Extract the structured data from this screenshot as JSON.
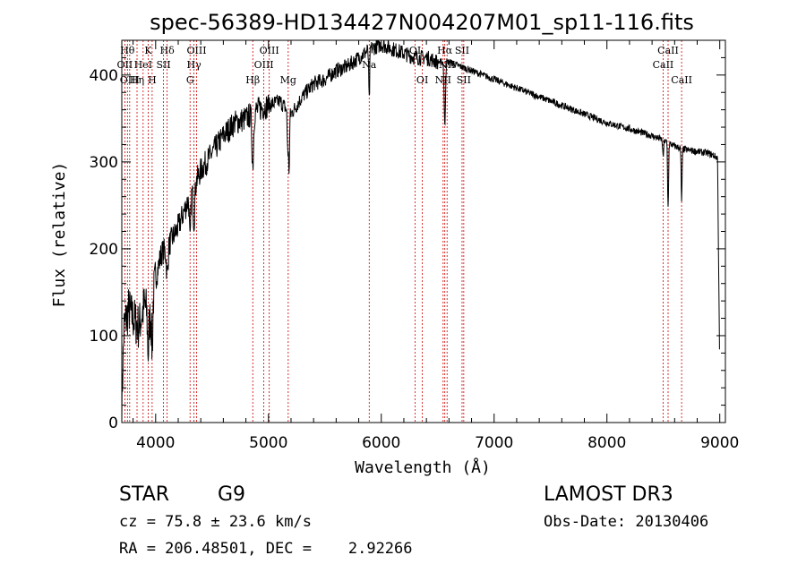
{
  "chart_data": {
    "type": "line",
    "title": "spec-56389-HD134427N004207M01_sp11-116.fits",
    "xlabel": "Wavelength (Å)",
    "ylabel": "Flux (relative)",
    "xlim": [
      3700,
      9050
    ],
    "ylim": [
      0,
      440
    ],
    "xticks": [
      4000,
      5000,
      6000,
      7000,
      8000,
      9000
    ],
    "yticks": [
      0,
      100,
      200,
      300,
      400
    ],
    "continuum_anchors": {
      "x": [
        3700,
        3720,
        3760,
        3800,
        3850,
        3900,
        3950,
        4000,
        4050,
        4100,
        4200,
        4300,
        4400,
        4500,
        4600,
        4700,
        4800,
        4900,
        5000,
        5100,
        5200,
        5300,
        5400,
        5500,
        5600,
        5700,
        5800,
        5900,
        6000,
        6100,
        6200,
        6300,
        6400,
        6500,
        6600,
        6700,
        6800,
        6900,
        7000,
        7200,
        7400,
        7600,
        7800,
        8000,
        8200,
        8400,
        8500,
        8600,
        8700,
        8800,
        8900,
        8980,
        9000
      ],
      "y": [
        20,
        110,
        130,
        120,
        110,
        135,
        120,
        165,
        195,
        200,
        225,
        260,
        290,
        310,
        330,
        345,
        350,
        360,
        365,
        370,
        355,
        375,
        390,
        395,
        405,
        410,
        420,
        430,
        435,
        430,
        425,
        420,
        420,
        415,
        415,
        410,
        405,
        400,
        395,
        385,
        375,
        365,
        355,
        345,
        338,
        330,
        325,
        318,
        314,
        312,
        310,
        305,
        60
      ]
    },
    "absorption_features": [
      {
        "x": 3934,
        "depth": 45,
        "width": 8
      },
      {
        "x": 3969,
        "depth": 50,
        "width": 8
      },
      {
        "x": 4102,
        "depth": 30,
        "width": 10
      },
      {
        "x": 4305,
        "depth": 55,
        "width": 8
      },
      {
        "x": 4340,
        "depth": 40,
        "width": 10
      },
      {
        "x": 4861,
        "depth": 60,
        "width": 10
      },
      {
        "x": 5172,
        "depth": 45,
        "width": 8
      },
      {
        "x": 5183,
        "depth": 60,
        "width": 6
      },
      {
        "x": 5893,
        "depth": 60,
        "width": 6
      },
      {
        "x": 6563,
        "depth": 75,
        "width": 8
      },
      {
        "x": 8498,
        "depth": 20,
        "width": 6
      },
      {
        "x": 8542,
        "depth": 75,
        "width": 6
      },
      {
        "x": 8662,
        "depth": 60,
        "width": 6
      }
    ],
    "spectral_lines": [
      {
        "x": 3750,
        "label": "Hθ",
        "row": 0
      },
      {
        "x": 3727,
        "label": "OII",
        "row": 1
      },
      {
        "x": 3770,
        "label": "OIII",
        "row": 2
      },
      {
        "x": 3835,
        "label": "Hη",
        "row": 2
      },
      {
        "x": 3889,
        "label": "HeI",
        "row": 1
      },
      {
        "x": 3934,
        "label": "K",
        "row": 0
      },
      {
        "x": 3969,
        "label": "H",
        "row": 2
      },
      {
        "x": 4070,
        "label": "SII",
        "row": 1
      },
      {
        "x": 4102,
        "label": "Hδ",
        "row": 0
      },
      {
        "x": 4340,
        "label": "Hγ",
        "row": 1
      },
      {
        "x": 4363,
        "label": "OIII",
        "row": 0
      },
      {
        "x": 4305,
        "label": "G",
        "row": 2
      },
      {
        "x": 4861,
        "label": "Hβ",
        "row": 2
      },
      {
        "x": 4959,
        "label": "OIII",
        "row": 1
      },
      {
        "x": 5007,
        "label": "OIII",
        "row": 0
      },
      {
        "x": 5175,
        "label": "Mg",
        "row": 2
      },
      {
        "x": 5893,
        "label": "Na",
        "row": 1
      },
      {
        "x": 6300,
        "label": "OI",
        "row": 0
      },
      {
        "x": 6364,
        "label": "OI",
        "row": 2
      },
      {
        "x": 6548,
        "label": "NII",
        "row": 2
      },
      {
        "x": 6563,
        "label": "Hα",
        "row": 0
      },
      {
        "x": 6583,
        "label": "NII",
        "row": 1
      },
      {
        "x": 6716,
        "label": "SII",
        "row": 0
      },
      {
        "x": 6731,
        "label": "SII",
        "row": 2
      },
      {
        "x": 8498,
        "label": "CaII",
        "row": 1
      },
      {
        "x": 8542,
        "label": "CaII",
        "row": 0
      },
      {
        "x": 8662,
        "label": "CaII",
        "row": 2
      }
    ]
  },
  "info": {
    "obj_class": "STAR",
    "subclass": "G9",
    "survey": "LAMOST DR3",
    "cz": "cz = 75.8 ± 23.6 km/s",
    "obs_date": "Obs-Date: 20130406",
    "coords": "RA = 206.48501, DEC =    2.92266"
  }
}
